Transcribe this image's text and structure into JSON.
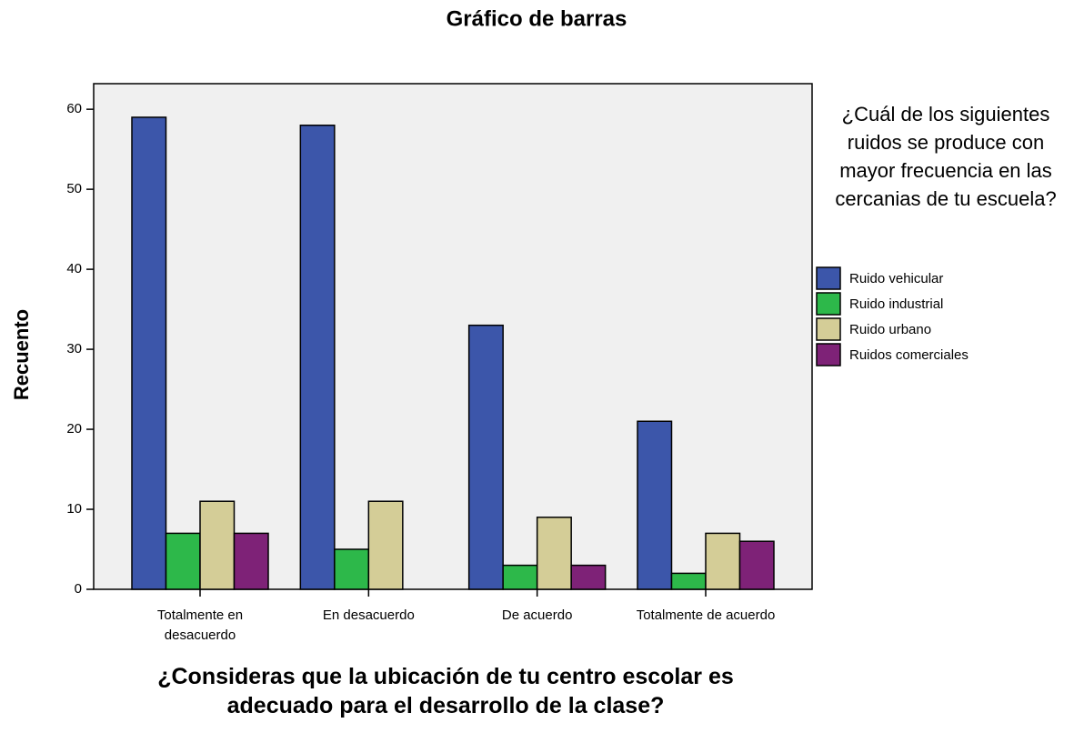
{
  "chart_data": {
    "type": "bar",
    "title": "Gráfico de barras",
    "x_label": "¿Consideras que la ubicación de tu centro escolar es adecuado para el desarrollo de la clase?",
    "y_label": "Recuento",
    "legend_title": "¿Cuál de los siguientes ruidos se produce con mayor frecuencia en las cercanias de tu escuela?",
    "legend_position": "right",
    "categories": [
      "Totalmente en desacuerdo",
      "En desacuerdo",
      "De acuerdo",
      "Totalmente de acuerdo"
    ],
    "series": [
      {
        "name": "Ruido vehicular",
        "color": "#3c56aa",
        "values": [
          59,
          58,
          33,
          21
        ]
      },
      {
        "name": "Ruido industrial",
        "color": "#2db84a",
        "values": [
          7,
          5,
          3,
          2
        ]
      },
      {
        "name": "Ruido urbano",
        "color": "#d4cd97",
        "values": [
          11,
          11,
          9,
          7
        ]
      },
      {
        "name": "Ruidos comerciales",
        "color": "#7e2277",
        "values": [
          7,
          0,
          3,
          6
        ]
      }
    ],
    "ylim": [
      0,
      63.2
    ],
    "yticks": [
      0,
      10,
      20,
      30,
      40,
      50,
      60
    ],
    "grid": false
  }
}
